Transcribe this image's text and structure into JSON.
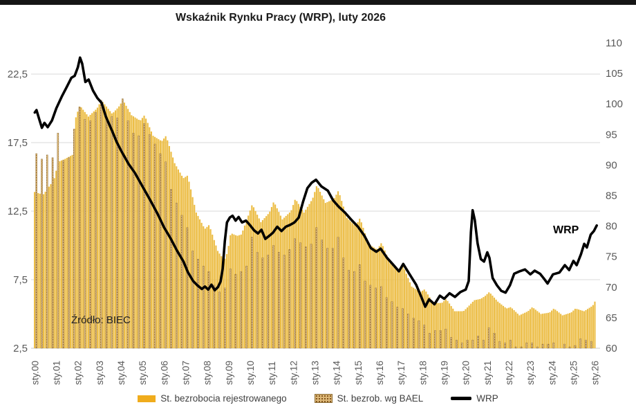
{
  "page": {
    "title": "Wskaźnik Rynku Pracy (WRP), luty 2026",
    "source_note": "Źródło: BIEC",
    "line_annotation": "WRP"
  },
  "legend": {
    "items": [
      {
        "label": "St. bezrobocia rejestrowanego",
        "swatch": "yellow-bar"
      },
      {
        "label": "St. bezrob. wg BAEL",
        "swatch": "dotted-tan-bar"
      },
      {
        "label": "WRP",
        "swatch": "black-line"
      }
    ]
  },
  "colors": {
    "bar_fill": "#ECBD45",
    "bar_fill_legend": "#F0AC1C",
    "bael_base": "#DDB878",
    "bael_dot": "#7d4f16",
    "bael_stroke": "#8a6a33",
    "line": "#000000",
    "grid": "#DADADA",
    "baseline": "#C9C9C9",
    "axis_text": "#595959",
    "title_text": "#1a1a1a"
  },
  "chart_data": {
    "type": "combo",
    "title": "Wskaźnik Rynku Pracy (WRP), luty 2026",
    "subtitle": "",
    "source": "Źródło: BIEC",
    "grid": "horizontal",
    "legend_position": "bottom",
    "x_axis": {
      "start": "sty.00",
      "end": "sty.26",
      "months_shown": 313,
      "tick_labels": [
        "sty.00",
        "sty.01",
        "sty.02",
        "sty.03",
        "sty.04",
        "sty.05",
        "sty.06",
        "sty.07",
        "sty.08",
        "sty.09",
        "sty.10",
        "sty.11",
        "sty.12",
        "sty.13",
        "sty.14",
        "sty.15",
        "sty.16",
        "sty.17",
        "sty.18",
        "sty.19",
        "sty.20",
        "sty.21",
        "sty.22",
        "sty.23",
        "sty.24",
        "sty.25",
        "sty.26"
      ]
    },
    "left_axis": {
      "unit": "%",
      "min": 2.5,
      "max": 24.8,
      "ticks": [
        "2,5",
        "7,5",
        "12,5",
        "17,5",
        "22,5"
      ],
      "tick_values": [
        2.5,
        7.5,
        12.5,
        17.5,
        22.5
      ]
    },
    "right_axis": {
      "unit": "index",
      "min": 60,
      "max": 110,
      "ticks": [
        "60",
        "65",
        "70",
        "75",
        "80",
        "85",
        "90",
        "95",
        "100",
        "105",
        "110"
      ],
      "tick_values": [
        60,
        65,
        70,
        75,
        80,
        85,
        90,
        95,
        100,
        105,
        110
      ]
    },
    "series": [
      {
        "name": "St. bezrobocia rejestrowanego",
        "type": "bar",
        "axis": "left",
        "frequency": "monthly",
        "note": "keypoints [decimal_year, percent]; monthly bars linearly interpolated",
        "keypoints": [
          [
            2000.0,
            13.9
          ],
          [
            2000.4,
            13.7
          ],
          [
            2000.9,
            14.8
          ],
          [
            2001.1,
            16.1
          ],
          [
            2001.4,
            16.3
          ],
          [
            2001.75,
            16.6
          ],
          [
            2001.92,
            19.4
          ],
          [
            2002.1,
            20.2
          ],
          [
            2002.5,
            19.4
          ],
          [
            2002.9,
            20.0
          ],
          [
            2003.1,
            20.6
          ],
          [
            2003.6,
            19.6
          ],
          [
            2003.9,
            20.1
          ],
          [
            2004.1,
            20.6
          ],
          [
            2004.5,
            19.5
          ],
          [
            2004.9,
            19.1
          ],
          [
            2005.1,
            19.5
          ],
          [
            2005.5,
            18.0
          ],
          [
            2005.9,
            17.6
          ],
          [
            2006.1,
            18.0
          ],
          [
            2006.5,
            16.0
          ],
          [
            2006.9,
            14.9
          ],
          [
            2007.1,
            15.1
          ],
          [
            2007.5,
            12.4
          ],
          [
            2007.9,
            11.2
          ],
          [
            2008.1,
            11.5
          ],
          [
            2008.5,
            9.6
          ],
          [
            2008.8,
            8.9
          ],
          [
            2008.95,
            9.5
          ],
          [
            2009.1,
            10.9
          ],
          [
            2009.4,
            10.7
          ],
          [
            2009.6,
            10.8
          ],
          [
            2009.9,
            12.1
          ],
          [
            2010.1,
            13.0
          ],
          [
            2010.5,
            11.7
          ],
          [
            2010.9,
            12.4
          ],
          [
            2011.1,
            13.2
          ],
          [
            2011.5,
            11.9
          ],
          [
            2011.9,
            12.5
          ],
          [
            2012.1,
            13.4
          ],
          [
            2012.5,
            12.4
          ],
          [
            2012.9,
            13.4
          ],
          [
            2013.1,
            14.4
          ],
          [
            2013.5,
            13.1
          ],
          [
            2013.9,
            13.4
          ],
          [
            2014.1,
            14.0
          ],
          [
            2014.5,
            12.0
          ],
          [
            2014.9,
            11.4
          ],
          [
            2015.1,
            12.0
          ],
          [
            2015.5,
            10.1
          ],
          [
            2015.9,
            9.7
          ],
          [
            2016.1,
            10.2
          ],
          [
            2016.5,
            8.7
          ],
          [
            2016.9,
            8.2
          ],
          [
            2017.1,
            8.5
          ],
          [
            2017.5,
            7.0
          ],
          [
            2017.9,
            6.6
          ],
          [
            2018.1,
            6.8
          ],
          [
            2018.5,
            5.8
          ],
          [
            2018.9,
            5.8
          ],
          [
            2019.1,
            6.1
          ],
          [
            2019.5,
            5.2
          ],
          [
            2019.9,
            5.2
          ],
          [
            2020.1,
            5.5
          ],
          [
            2020.4,
            6.0
          ],
          [
            2020.7,
            6.1
          ],
          [
            2020.9,
            6.3
          ],
          [
            2021.1,
            6.6
          ],
          [
            2021.5,
            5.9
          ],
          [
            2021.9,
            5.4
          ],
          [
            2022.1,
            5.5
          ],
          [
            2022.5,
            4.9
          ],
          [
            2022.9,
            5.2
          ],
          [
            2023.1,
            5.5
          ],
          [
            2023.5,
            5.0
          ],
          [
            2023.9,
            5.1
          ],
          [
            2024.1,
            5.4
          ],
          [
            2024.5,
            4.9
          ],
          [
            2024.9,
            5.1
          ],
          [
            2025.1,
            5.4
          ],
          [
            2025.5,
            5.2
          ],
          [
            2025.9,
            5.6
          ],
          [
            2026.0,
            5.9
          ]
        ]
      },
      {
        "name": "St. bezrob. wg BAEL",
        "type": "bar",
        "axis": "left",
        "frequency": "quarterly",
        "start": "2000Q1",
        "values": [
          16.7,
          16.3,
          16.6,
          16.4,
          18.2,
          16.2,
          16.4,
          18.5,
          20.1,
          19.2,
          19.1,
          19.7,
          20.6,
          19.4,
          19.4,
          19.3,
          20.7,
          19.1,
          18.2,
          18.0,
          18.9,
          18.1,
          17.4,
          16.7,
          16.1,
          14.1,
          13.1,
          12.2,
          11.3,
          9.6,
          9.0,
          8.5,
          8.1,
          7.1,
          6.6,
          6.9,
          8.3,
          7.9,
          8.1,
          8.5,
          10.6,
          9.5,
          9.1,
          9.3,
          10.0,
          9.5,
          9.3,
          9.7,
          10.5,
          10.2,
          9.9,
          10.1,
          11.3,
          10.4,
          9.8,
          9.8,
          10.6,
          9.1,
          8.2,
          8.1,
          8.6,
          7.4,
          7.1,
          6.9,
          7.0,
          6.2,
          5.9,
          5.5,
          5.4,
          5.0,
          4.7,
          4.5,
          4.2,
          3.6,
          3.8,
          3.8,
          3.9,
          3.3,
          3.1,
          2.9,
          3.1,
          3.1,
          3.4,
          3.1,
          4.0,
          3.6,
          3.0,
          2.9,
          3.1,
          2.6,
          2.6,
          2.9,
          2.9,
          2.6,
          2.8,
          2.8,
          2.9,
          2.5,
          2.8,
          2.6,
          2.7,
          3.2,
          3.1,
          3.0
        ]
      },
      {
        "name": "WRP",
        "type": "line",
        "axis": "right",
        "annotation": "WRP",
        "note": "keypoints [decimal_year, index_value]",
        "keypoints": [
          [
            2000.0,
            98.6
          ],
          [
            2000.08,
            99.0
          ],
          [
            2000.2,
            97.6
          ],
          [
            2000.33,
            96.1
          ],
          [
            2000.45,
            96.9
          ],
          [
            2000.6,
            96.2
          ],
          [
            2000.8,
            97.3
          ],
          [
            2001.0,
            99.3
          ],
          [
            2001.25,
            101.2
          ],
          [
            2001.5,
            102.9
          ],
          [
            2001.7,
            104.3
          ],
          [
            2001.85,
            104.6
          ],
          [
            2002.0,
            106.0
          ],
          [
            2002.1,
            107.6
          ],
          [
            2002.2,
            106.6
          ],
          [
            2002.35,
            103.6
          ],
          [
            2002.5,
            104.0
          ],
          [
            2002.7,
            102.2
          ],
          [
            2002.9,
            101.0
          ],
          [
            2003.1,
            100.2
          ],
          [
            2003.3,
            97.9
          ],
          [
            2003.6,
            95.5
          ],
          [
            2003.8,
            93.8
          ],
          [
            2004.0,
            92.4
          ],
          [
            2004.35,
            90.2
          ],
          [
            2004.65,
            88.7
          ],
          [
            2005.0,
            86.5
          ],
          [
            2005.35,
            84.3
          ],
          [
            2005.7,
            82.0
          ],
          [
            2006.0,
            79.8
          ],
          [
            2006.3,
            78.0
          ],
          [
            2006.6,
            76.0
          ],
          [
            2006.9,
            74.2
          ],
          [
            2007.1,
            72.5
          ],
          [
            2007.35,
            71.0
          ],
          [
            2007.55,
            70.3
          ],
          [
            2007.75,
            69.7
          ],
          [
            2007.9,
            70.1
          ],
          [
            2008.05,
            69.6
          ],
          [
            2008.2,
            70.4
          ],
          [
            2008.35,
            69.5
          ],
          [
            2008.5,
            70.0
          ],
          [
            2008.62,
            70.9
          ],
          [
            2008.72,
            73.0
          ],
          [
            2008.82,
            77.5
          ],
          [
            2008.92,
            80.6
          ],
          [
            2009.05,
            81.4
          ],
          [
            2009.18,
            81.7
          ],
          [
            2009.32,
            80.9
          ],
          [
            2009.46,
            81.5
          ],
          [
            2009.62,
            80.6
          ],
          [
            2009.8,
            80.9
          ],
          [
            2010.0,
            80.1
          ],
          [
            2010.18,
            79.3
          ],
          [
            2010.36,
            78.8
          ],
          [
            2010.52,
            79.4
          ],
          [
            2010.7,
            77.9
          ],
          [
            2010.88,
            78.4
          ],
          [
            2011.05,
            78.9
          ],
          [
            2011.25,
            79.9
          ],
          [
            2011.45,
            79.2
          ],
          [
            2011.65,
            79.9
          ],
          [
            2011.85,
            80.2
          ],
          [
            2012.05,
            80.6
          ],
          [
            2012.25,
            81.4
          ],
          [
            2012.45,
            84.0
          ],
          [
            2012.65,
            86.2
          ],
          [
            2012.85,
            87.1
          ],
          [
            2013.05,
            87.6
          ],
          [
            2013.3,
            86.5
          ],
          [
            2013.6,
            85.8
          ],
          [
            2013.85,
            84.2
          ],
          [
            2014.1,
            83.2
          ],
          [
            2014.4,
            82.2
          ],
          [
            2014.7,
            81.0
          ],
          [
            2015.0,
            79.9
          ],
          [
            2015.3,
            78.4
          ],
          [
            2015.6,
            76.4
          ],
          [
            2015.85,
            75.8
          ],
          [
            2016.05,
            76.3
          ],
          [
            2016.35,
            74.8
          ],
          [
            2016.65,
            73.6
          ],
          [
            2016.9,
            72.6
          ],
          [
            2017.1,
            73.8
          ],
          [
            2017.4,
            72.1
          ],
          [
            2017.7,
            70.4
          ],
          [
            2017.95,
            68.3
          ],
          [
            2018.12,
            66.8
          ],
          [
            2018.3,
            68.0
          ],
          [
            2018.55,
            67.2
          ],
          [
            2018.8,
            68.6
          ],
          [
            2019.0,
            68.1
          ],
          [
            2019.25,
            69.0
          ],
          [
            2019.5,
            68.4
          ],
          [
            2019.75,
            69.2
          ],
          [
            2020.0,
            69.6
          ],
          [
            2020.14,
            71.0
          ],
          [
            2020.24,
            79.0
          ],
          [
            2020.32,
            82.6
          ],
          [
            2020.42,
            81.0
          ],
          [
            2020.55,
            77.2
          ],
          [
            2020.7,
            74.6
          ],
          [
            2020.85,
            74.2
          ],
          [
            2021.0,
            75.7
          ],
          [
            2021.1,
            74.8
          ],
          [
            2021.25,
            71.5
          ],
          [
            2021.45,
            70.3
          ],
          [
            2021.65,
            69.4
          ],
          [
            2021.85,
            69.1
          ],
          [
            2022.05,
            70.3
          ],
          [
            2022.25,
            72.2
          ],
          [
            2022.5,
            72.6
          ],
          [
            2022.75,
            72.9
          ],
          [
            2023.0,
            72.1
          ],
          [
            2023.2,
            72.7
          ],
          [
            2023.45,
            72.2
          ],
          [
            2023.65,
            71.3
          ],
          [
            2023.8,
            70.6
          ],
          [
            2024.05,
            72.1
          ],
          [
            2024.35,
            72.4
          ],
          [
            2024.6,
            73.6
          ],
          [
            2024.8,
            72.8
          ],
          [
            2025.0,
            74.3
          ],
          [
            2025.15,
            73.6
          ],
          [
            2025.35,
            75.4
          ],
          [
            2025.5,
            77.1
          ],
          [
            2025.62,
            76.5
          ],
          [
            2025.8,
            78.6
          ],
          [
            2025.95,
            79.2
          ],
          [
            2026.08,
            80.1
          ]
        ]
      }
    ]
  }
}
